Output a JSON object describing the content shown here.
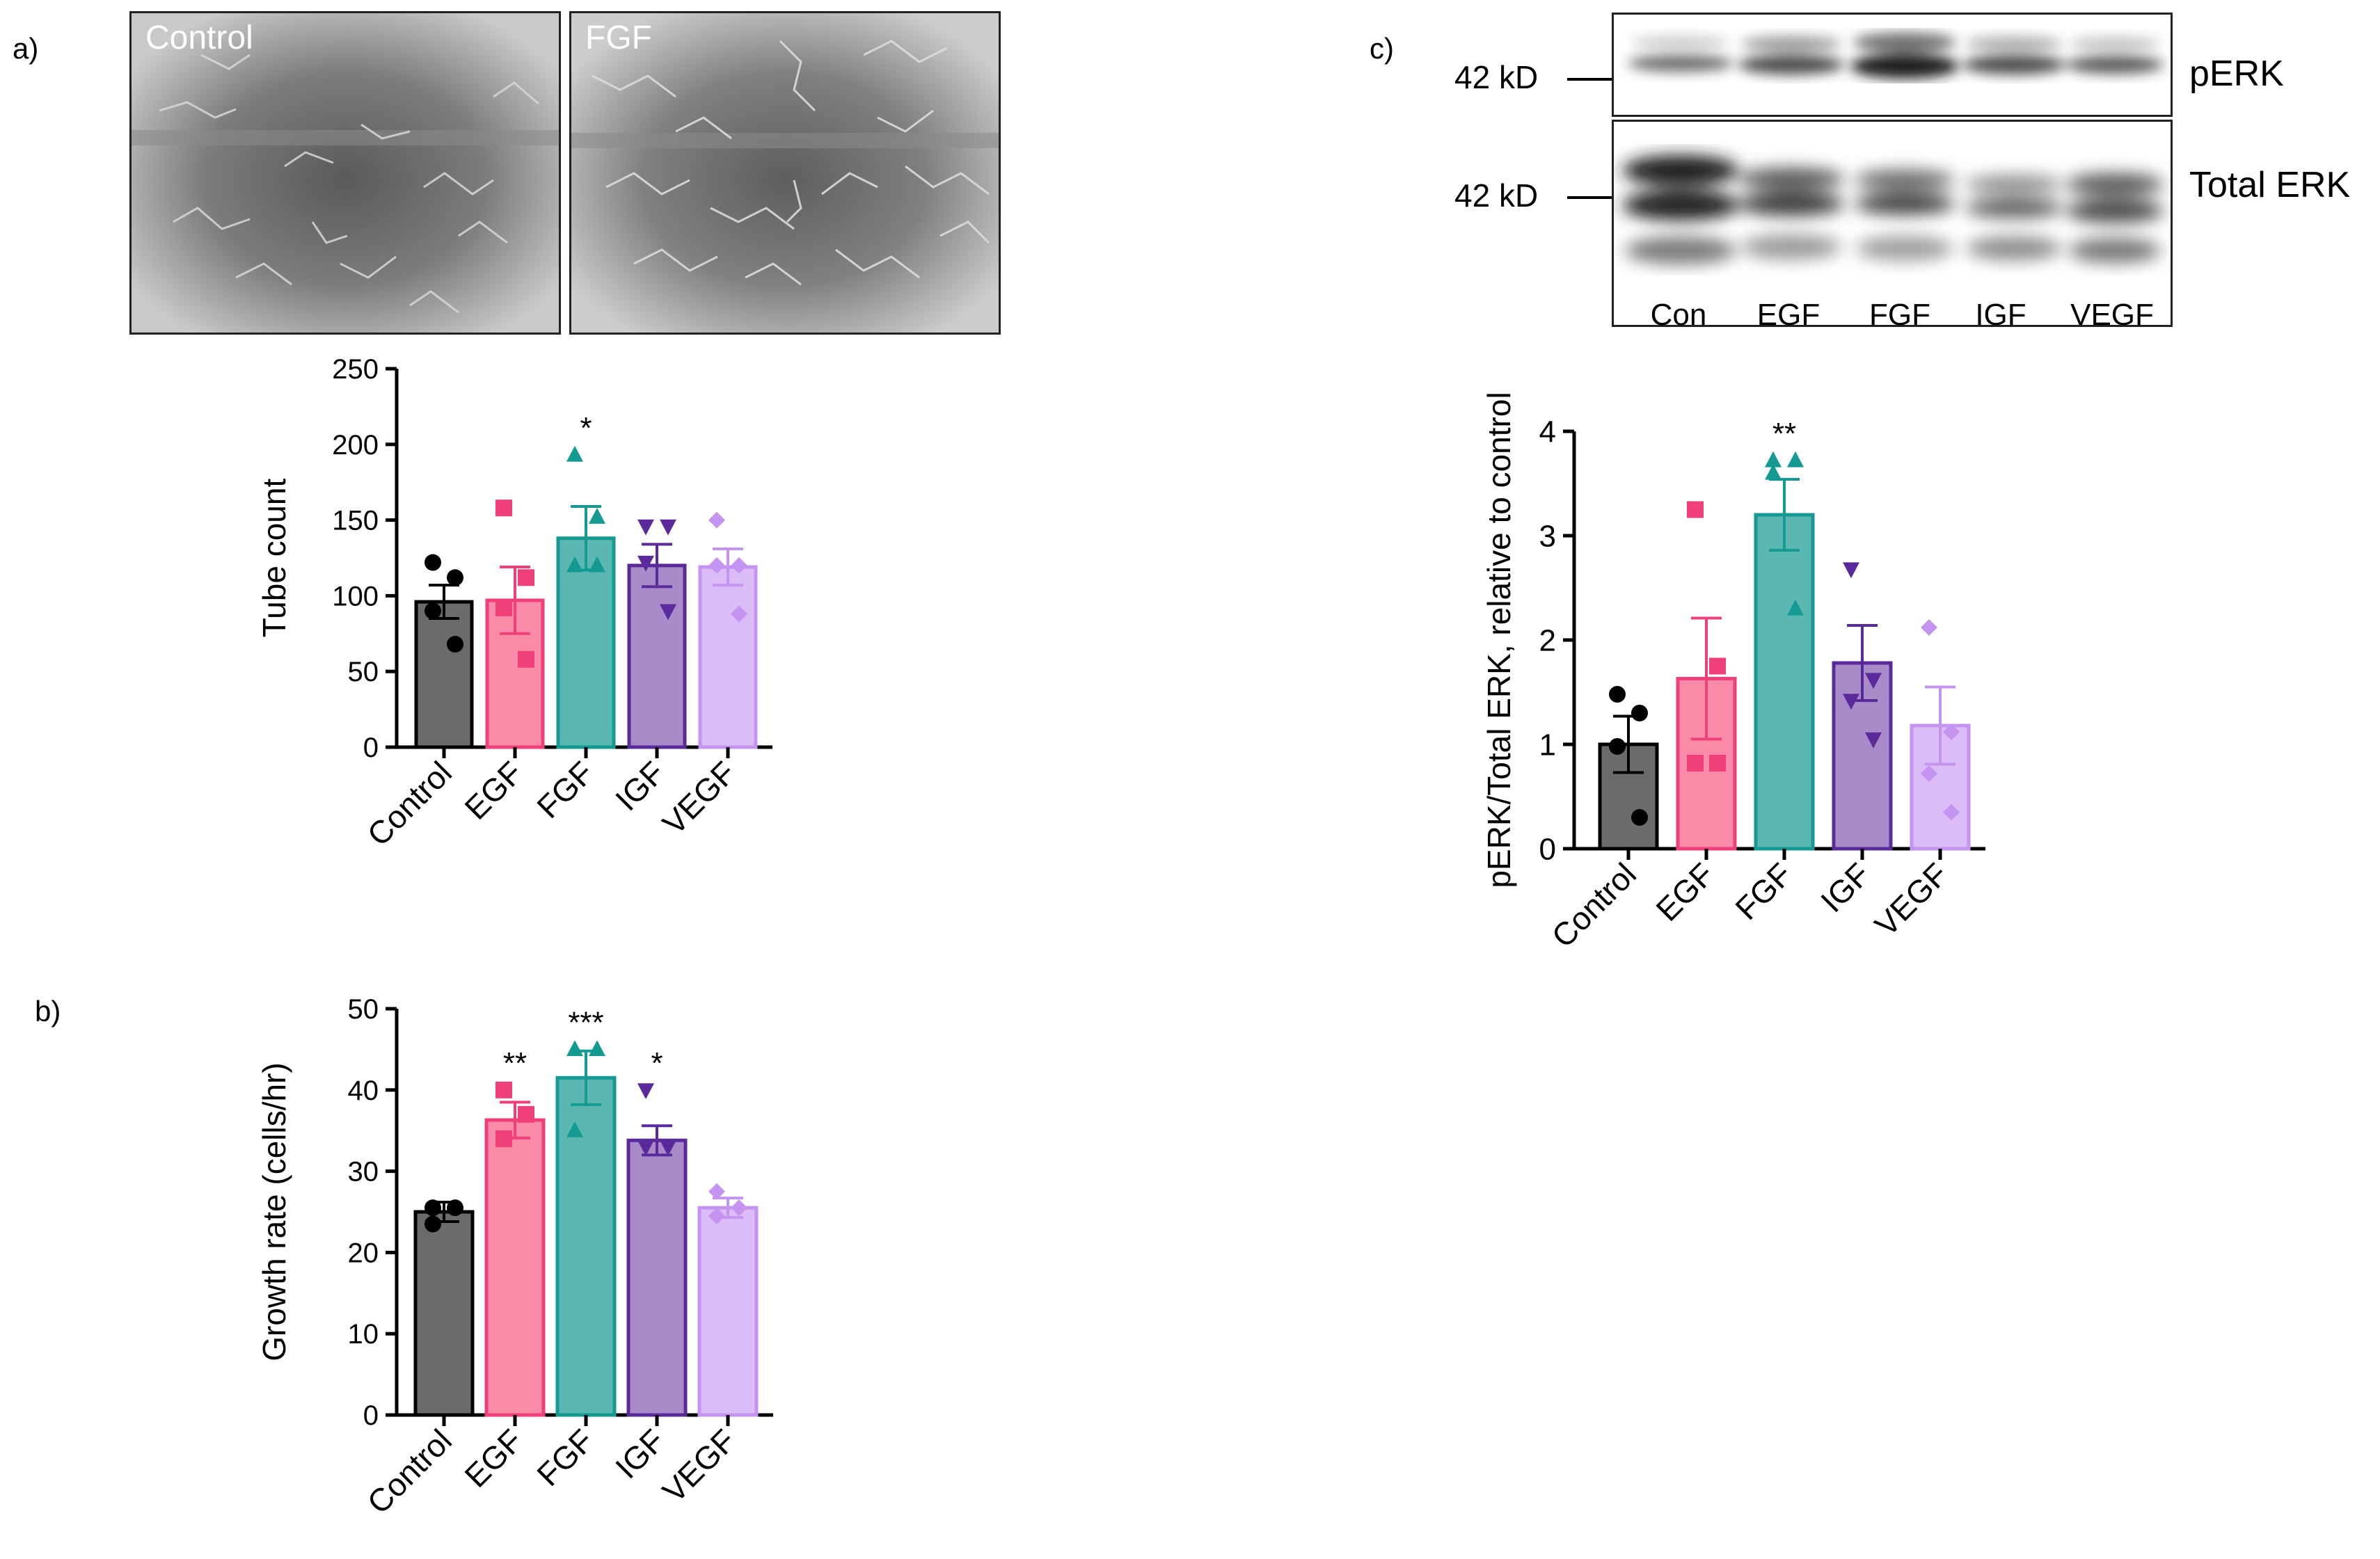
{
  "panel_labels": {
    "a": "a)",
    "b": "b)",
    "c": "c)"
  },
  "micrographs": [
    {
      "label": "Control"
    },
    {
      "label": "FGF"
    }
  ],
  "western_blot": {
    "size_marker": "42 kD",
    "rows": [
      "pERK",
      "Total ERK"
    ],
    "lanes": [
      "Con",
      "EGF",
      "FGF",
      "IGF",
      "VEGF"
    ]
  },
  "colors": {
    "Control": "#6b6b6b",
    "EGF": "#f98aa8",
    "FGF": "#5bb8b1",
    "IGF": "#a98bc9",
    "VEGF": "#dcbcf7",
    "Control_dot": "#000000",
    "EGF_dot": "#f0407a",
    "FGF_dot": "#149a92",
    "IGF_dot": "#5a2a9a",
    "VEGF_dot": "#c494f0"
  },
  "chart_data": [
    {
      "id": "tube",
      "type": "bar",
      "categories": [
        "Control",
        "EGF",
        "FGF",
        "IGF",
        "VEGF"
      ],
      "values": [
        96,
        97,
        138,
        120,
        119
      ],
      "errors": [
        11,
        22,
        21,
        14,
        12
      ],
      "points": [
        [
          122,
          112,
          90,
          68
        ],
        [
          158,
          112,
          92,
          58
        ],
        [
          193,
          152,
          120,
          120
        ],
        [
          146,
          146,
          122,
          90
        ],
        [
          150,
          120,
          120,
          88
        ]
      ],
      "markers": [
        "circle",
        "square",
        "triangle",
        "triangle-down",
        "diamond"
      ],
      "significance": [
        "",
        "",
        "*",
        "",
        ""
      ],
      "ylabel": "Tube count",
      "ylim": [
        0,
        250
      ],
      "yticks": [
        0,
        50,
        100,
        150,
        200,
        250
      ]
    },
    {
      "id": "growth",
      "type": "bar",
      "categories": [
        "Control",
        "EGF",
        "FGF",
        "IGF",
        "VEGF"
      ],
      "values": [
        25,
        36.3,
        41.5,
        33.8,
        25.5
      ],
      "errors": [
        1.2,
        2.2,
        3.3,
        1.8,
        1.2
      ],
      "points": [
        [
          25.5,
          25.5,
          23.5
        ],
        [
          40,
          37,
          34
        ],
        [
          45,
          45,
          35
        ],
        [
          40,
          33,
          33
        ],
        [
          27.5,
          25.5,
          24.5
        ]
      ],
      "markers": [
        "circle",
        "square",
        "triangle",
        "triangle-down",
        "diamond"
      ],
      "significance": [
        "",
        "**",
        "***",
        "*",
        ""
      ],
      "ylabel": "Growth rate (cells/hr)",
      "ylim": [
        0,
        50
      ],
      "yticks": [
        0,
        10,
        20,
        30,
        40,
        50
      ]
    },
    {
      "id": "perk",
      "type": "bar",
      "categories": [
        "Control",
        "EGF",
        "FGF",
        "IGF",
        "VEGF"
      ],
      "values": [
        1.0,
        1.63,
        3.2,
        1.78,
        1.18
      ],
      "errors": [
        0.27,
        0.58,
        0.34,
        0.36,
        0.37
      ],
      "points": [
        [
          1.48,
          1.3,
          0.98,
          0.3
        ],
        [
          3.25,
          1.75,
          0.82,
          0.82
        ],
        [
          3.6,
          3.72,
          3.72,
          2.3
        ],
        [
          2.68,
          1.62,
          1.42,
          1.05
        ],
        [
          2.12,
          1.12,
          0.72,
          0.35
        ]
      ],
      "markers": [
        "circle",
        "square",
        "triangle",
        "triangle-down",
        "diamond"
      ],
      "significance": [
        "",
        "",
        "**",
        "",
        ""
      ],
      "ylabel": "pERK/Total ERK, relative to control",
      "ylim": [
        0,
        4
      ],
      "yticks": [
        0,
        1,
        2,
        3,
        4
      ]
    }
  ]
}
